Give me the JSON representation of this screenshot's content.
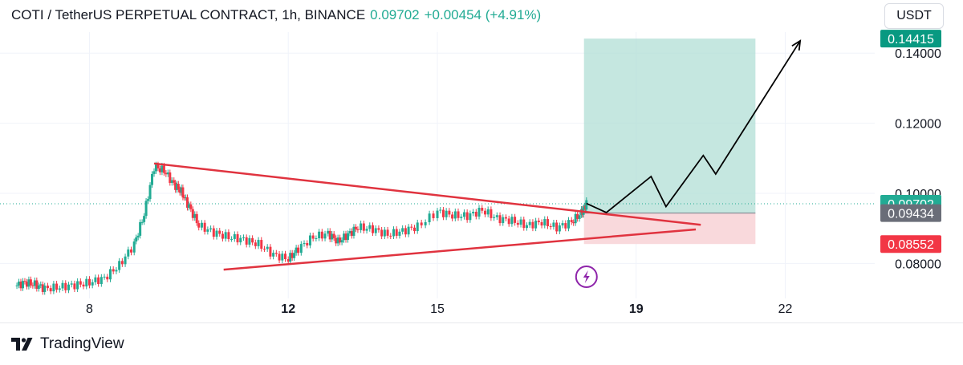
{
  "header": {
    "title": "COTI / TetherUS PERPETUAL CONTRACT, 1h, BINANCE",
    "price": "0.09702",
    "change": "+0.00454 (+4.91%)"
  },
  "currency_button": {
    "label": "USDT"
  },
  "branding": {
    "name": "TradingView"
  },
  "colors": {
    "up": "#22ab94",
    "down": "#f23645",
    "target_zone": "#b2dfd6",
    "stop_zone": "#f8d2d6",
    "triangle": "#e0333f",
    "projection": "#000000",
    "lightning_badge": "#8e24aa"
  },
  "chart_data": {
    "type": "line",
    "title": "COTI / TetherUS PERPETUAL CONTRACT, 1h, BINANCE",
    "ylim": [
      0.07,
      0.146
    ],
    "xlim": [
      6.2,
      23.8
    ],
    "y_ticks": [
      "0.14000",
      "0.12000",
      "0.10000",
      "0.08000"
    ],
    "y_tick_values": [
      0.14,
      0.12,
      0.1,
      0.08
    ],
    "x_ticks": [
      {
        "label": "8",
        "value": 8,
        "bold": false
      },
      {
        "label": "12",
        "value": 12,
        "bold": true
      },
      {
        "label": "15",
        "value": 15,
        "bold": false
      },
      {
        "label": "19",
        "value": 19,
        "bold": true
      },
      {
        "label": "22",
        "value": 22,
        "bold": false
      }
    ],
    "price_tags": [
      {
        "label": "0.14415",
        "value": 0.14415,
        "kind": "target"
      },
      {
        "label": "0.09702",
        "value": 0.09702,
        "kind": "last"
      },
      {
        "label": "0.09434",
        "value": 0.09434,
        "kind": "entry"
      },
      {
        "label": "0.08552",
        "value": 0.08552,
        "kind": "stop"
      }
    ],
    "series": [
      {
        "kind": "price",
        "x": [
          6.5,
          6.7,
          6.9,
          7.1,
          7.4,
          7.7,
          8.0,
          8.3,
          8.6,
          8.9,
          9.1,
          9.3,
          9.5,
          9.7,
          9.85,
          10.0,
          10.2,
          10.5,
          10.8,
          11.1,
          11.4,
          11.7,
          12.0,
          12.2,
          12.5,
          12.8,
          13.0,
          13.2,
          13.4,
          13.7,
          14.0,
          14.3,
          14.6,
          15.0,
          15.3,
          15.6,
          15.9,
          16.2,
          16.5,
          16.8,
          17.1,
          17.4,
          17.7,
          17.9,
          18.0
        ],
        "y": [
          0.0735,
          0.0745,
          0.074,
          0.0728,
          0.0732,
          0.0738,
          0.0745,
          0.0758,
          0.0795,
          0.0855,
          0.094,
          0.1075,
          0.1065,
          0.1025,
          0.1005,
          0.0962,
          0.0908,
          0.0888,
          0.0875,
          0.0868,
          0.0855,
          0.0825,
          0.0812,
          0.0842,
          0.0875,
          0.0885,
          0.0862,
          0.0882,
          0.0903,
          0.0898,
          0.0882,
          0.0892,
          0.0905,
          0.0948,
          0.0937,
          0.0935,
          0.0952,
          0.0928,
          0.0922,
          0.0908,
          0.0918,
          0.0902,
          0.0918,
          0.0945,
          0.097
        ]
      }
    ],
    "triangle": {
      "upper": {
        "from": [
          9.3,
          0.1085
        ],
        "to": [
          20.3,
          0.091
        ]
      },
      "lower": {
        "from": [
          10.7,
          0.0782
        ],
        "to": [
          20.2,
          0.0897
        ]
      }
    },
    "position_zones": {
      "x_range": [
        17.95,
        21.4
      ],
      "target": 0.14415,
      "entry": 0.09434,
      "stop": 0.08552
    },
    "projection_path": {
      "x": [
        18.0,
        18.4,
        19.3,
        19.6,
        20.35,
        20.6,
        22.3
      ],
      "y": [
        0.0971,
        0.0945,
        0.1048,
        0.0962,
        0.1108,
        0.1055,
        0.1435
      ]
    },
    "grid": true
  }
}
